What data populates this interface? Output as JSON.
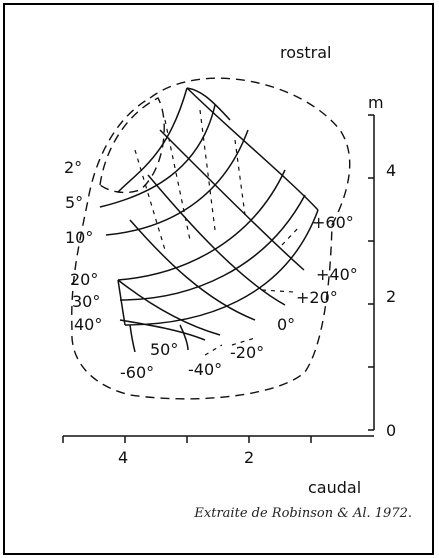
{
  "labels": {
    "rostral": "rostral",
    "caudal": "caudal",
    "m": "m"
  },
  "left_axis_labels": [
    "2°",
    "5°",
    "10°",
    "20°",
    "30°",
    "40°"
  ],
  "bottom_labels": [
    "50°",
    "-60°",
    "-40°",
    "-20°"
  ],
  "right_labels": [
    "+60°",
    "+40°",
    "+20°",
    "0°"
  ],
  "vertical_ticks": [
    "4",
    "2",
    "0"
  ],
  "horizontal_ticks": [
    "4",
    "2"
  ],
  "caption": "Extraite de Robinson & Al. 1972."
}
